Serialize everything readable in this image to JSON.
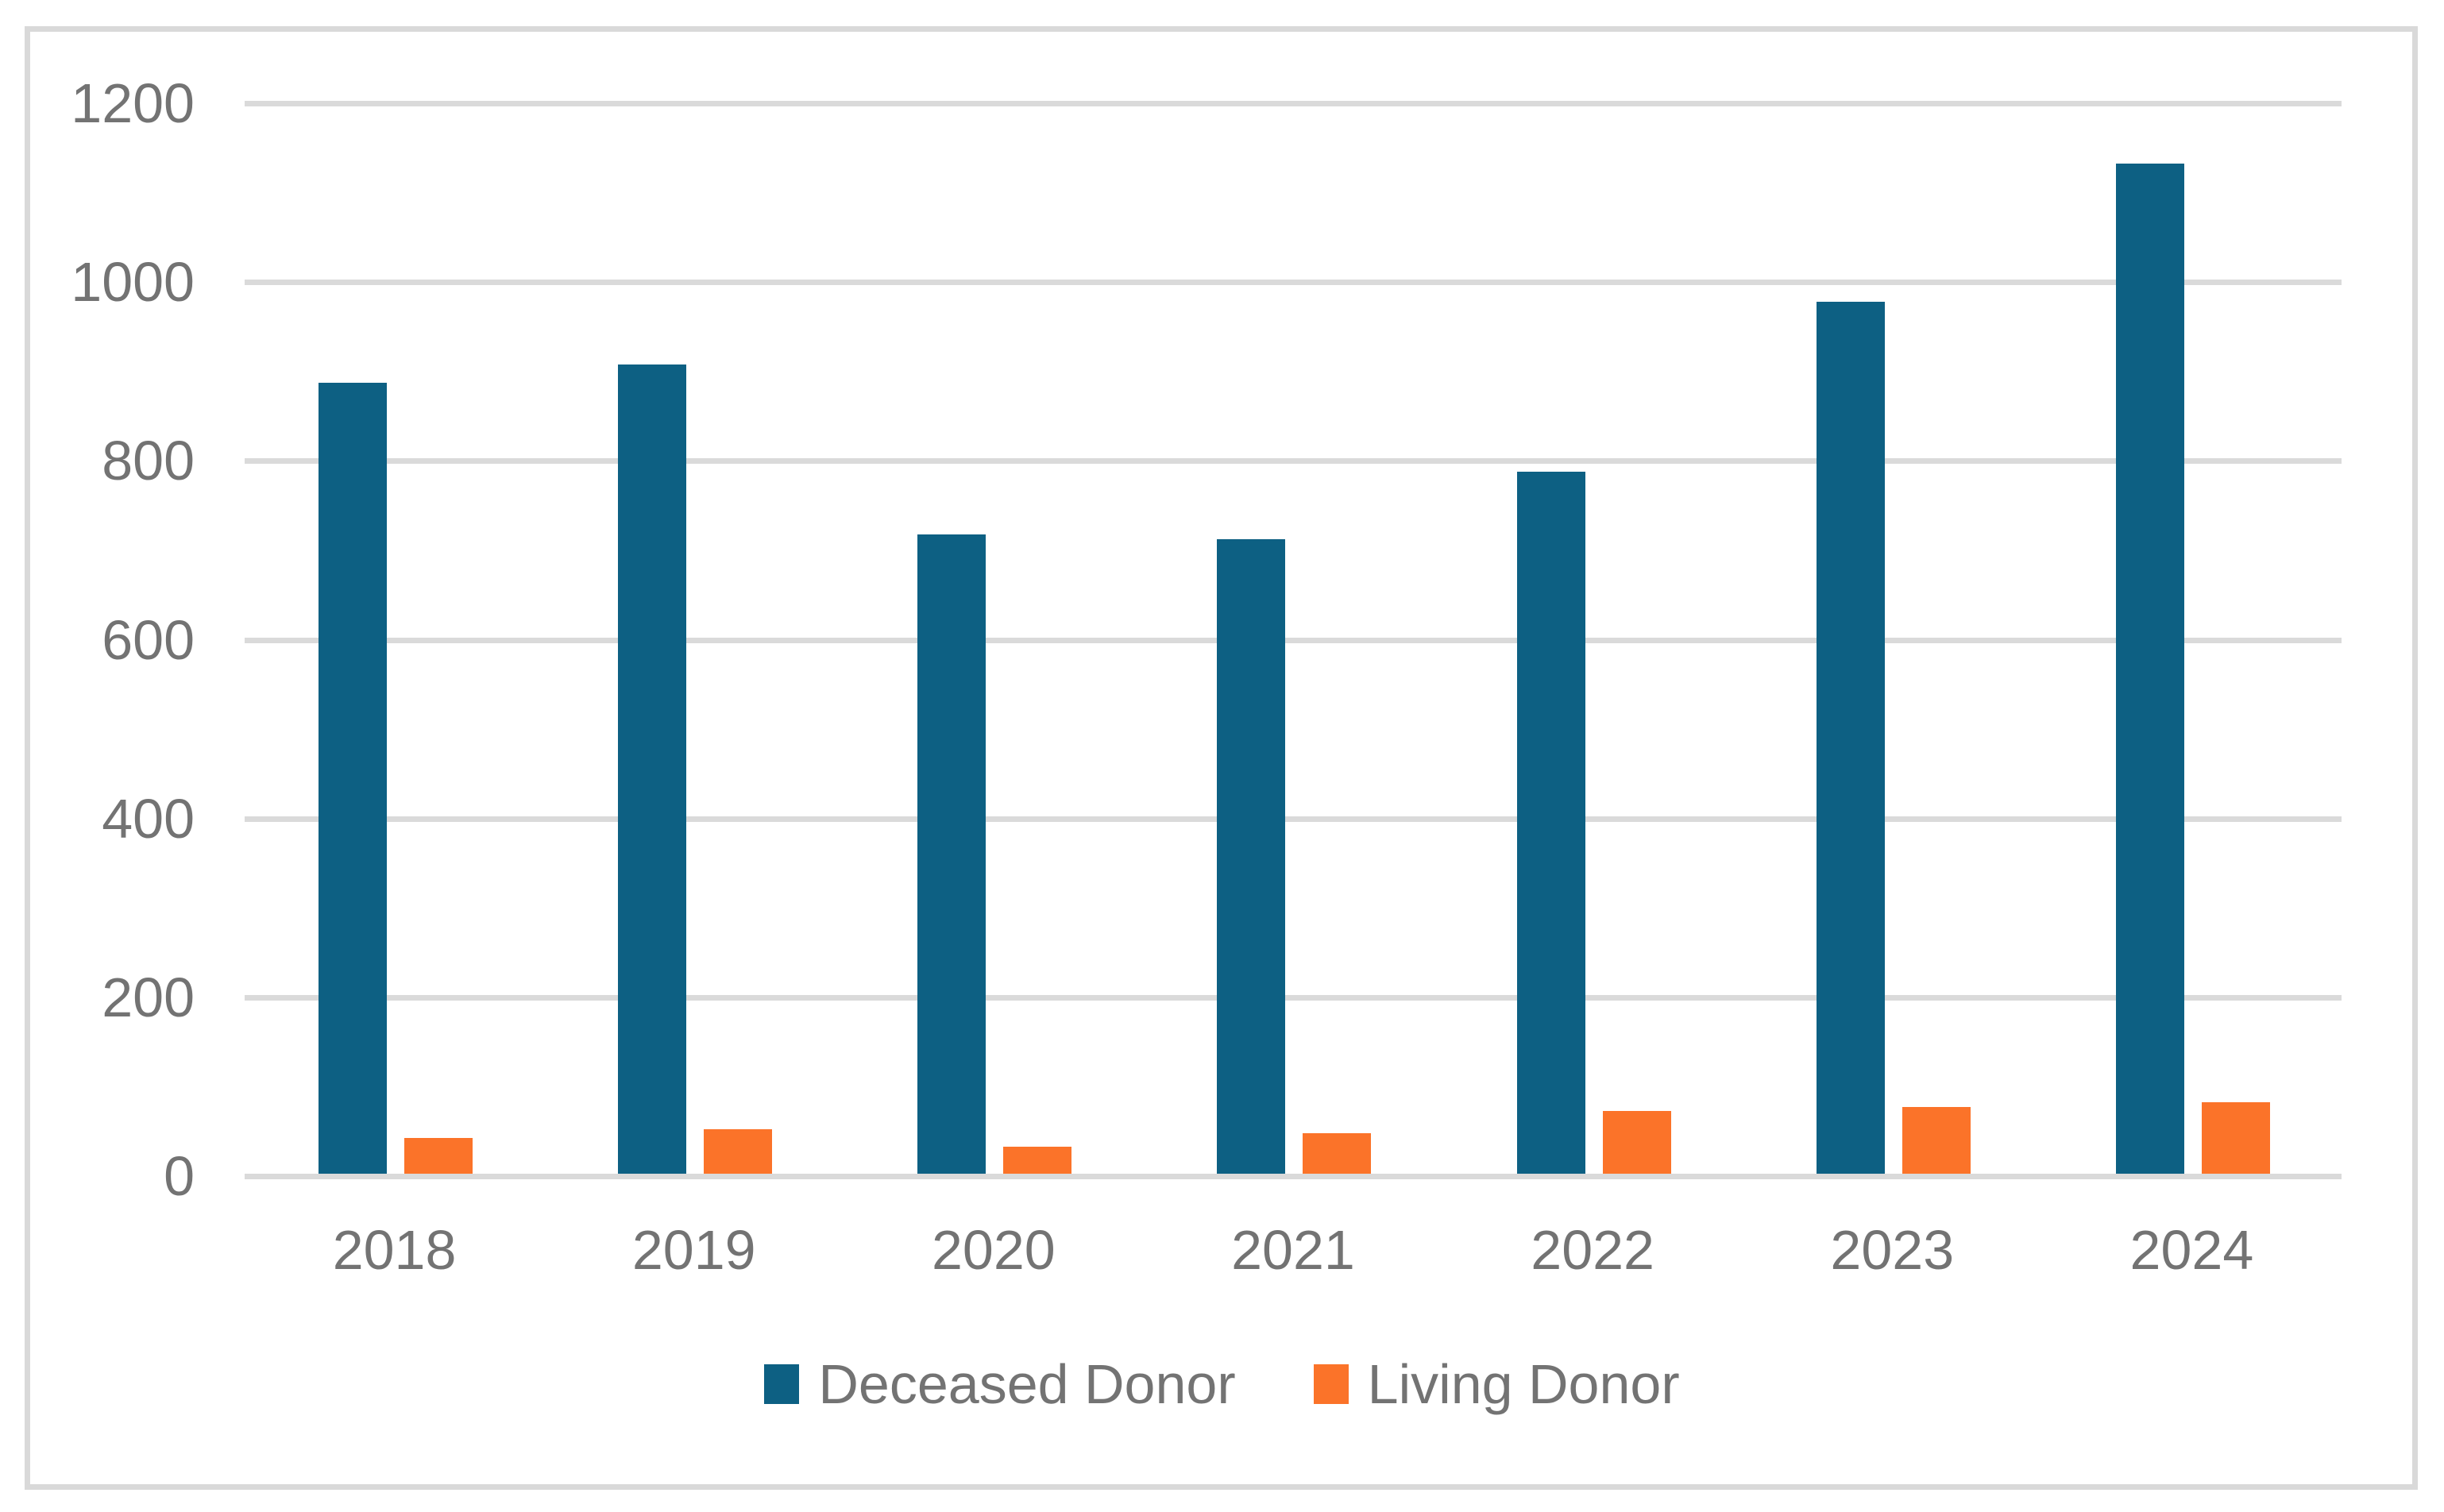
{
  "chart_data": {
    "type": "bar",
    "title": "",
    "xlabel": "",
    "ylabel": "",
    "categories": [
      "2018",
      "2019",
      "2020",
      "2021",
      "2022",
      "2023",
      "2024"
    ],
    "series": [
      {
        "name": "Deceased Donor",
        "color": "#0d6083",
        "values": [
          885,
          905,
          715,
          710,
          785,
          975,
          1130
        ]
      },
      {
        "name": "Living Donor",
        "color": "#fb7329",
        "values": [
          40,
          50,
          30,
          45,
          70,
          75,
          80
        ]
      }
    ],
    "ylim": [
      0,
      1200
    ],
    "yticks": [
      0,
      200,
      400,
      600,
      800,
      1000,
      1200
    ],
    "grid": "horizontal",
    "gridline_color": "#dadada",
    "axis_label_color": "#737373",
    "frame_border_color": "#d9d9d9",
    "legend_position": "bottom-center"
  }
}
